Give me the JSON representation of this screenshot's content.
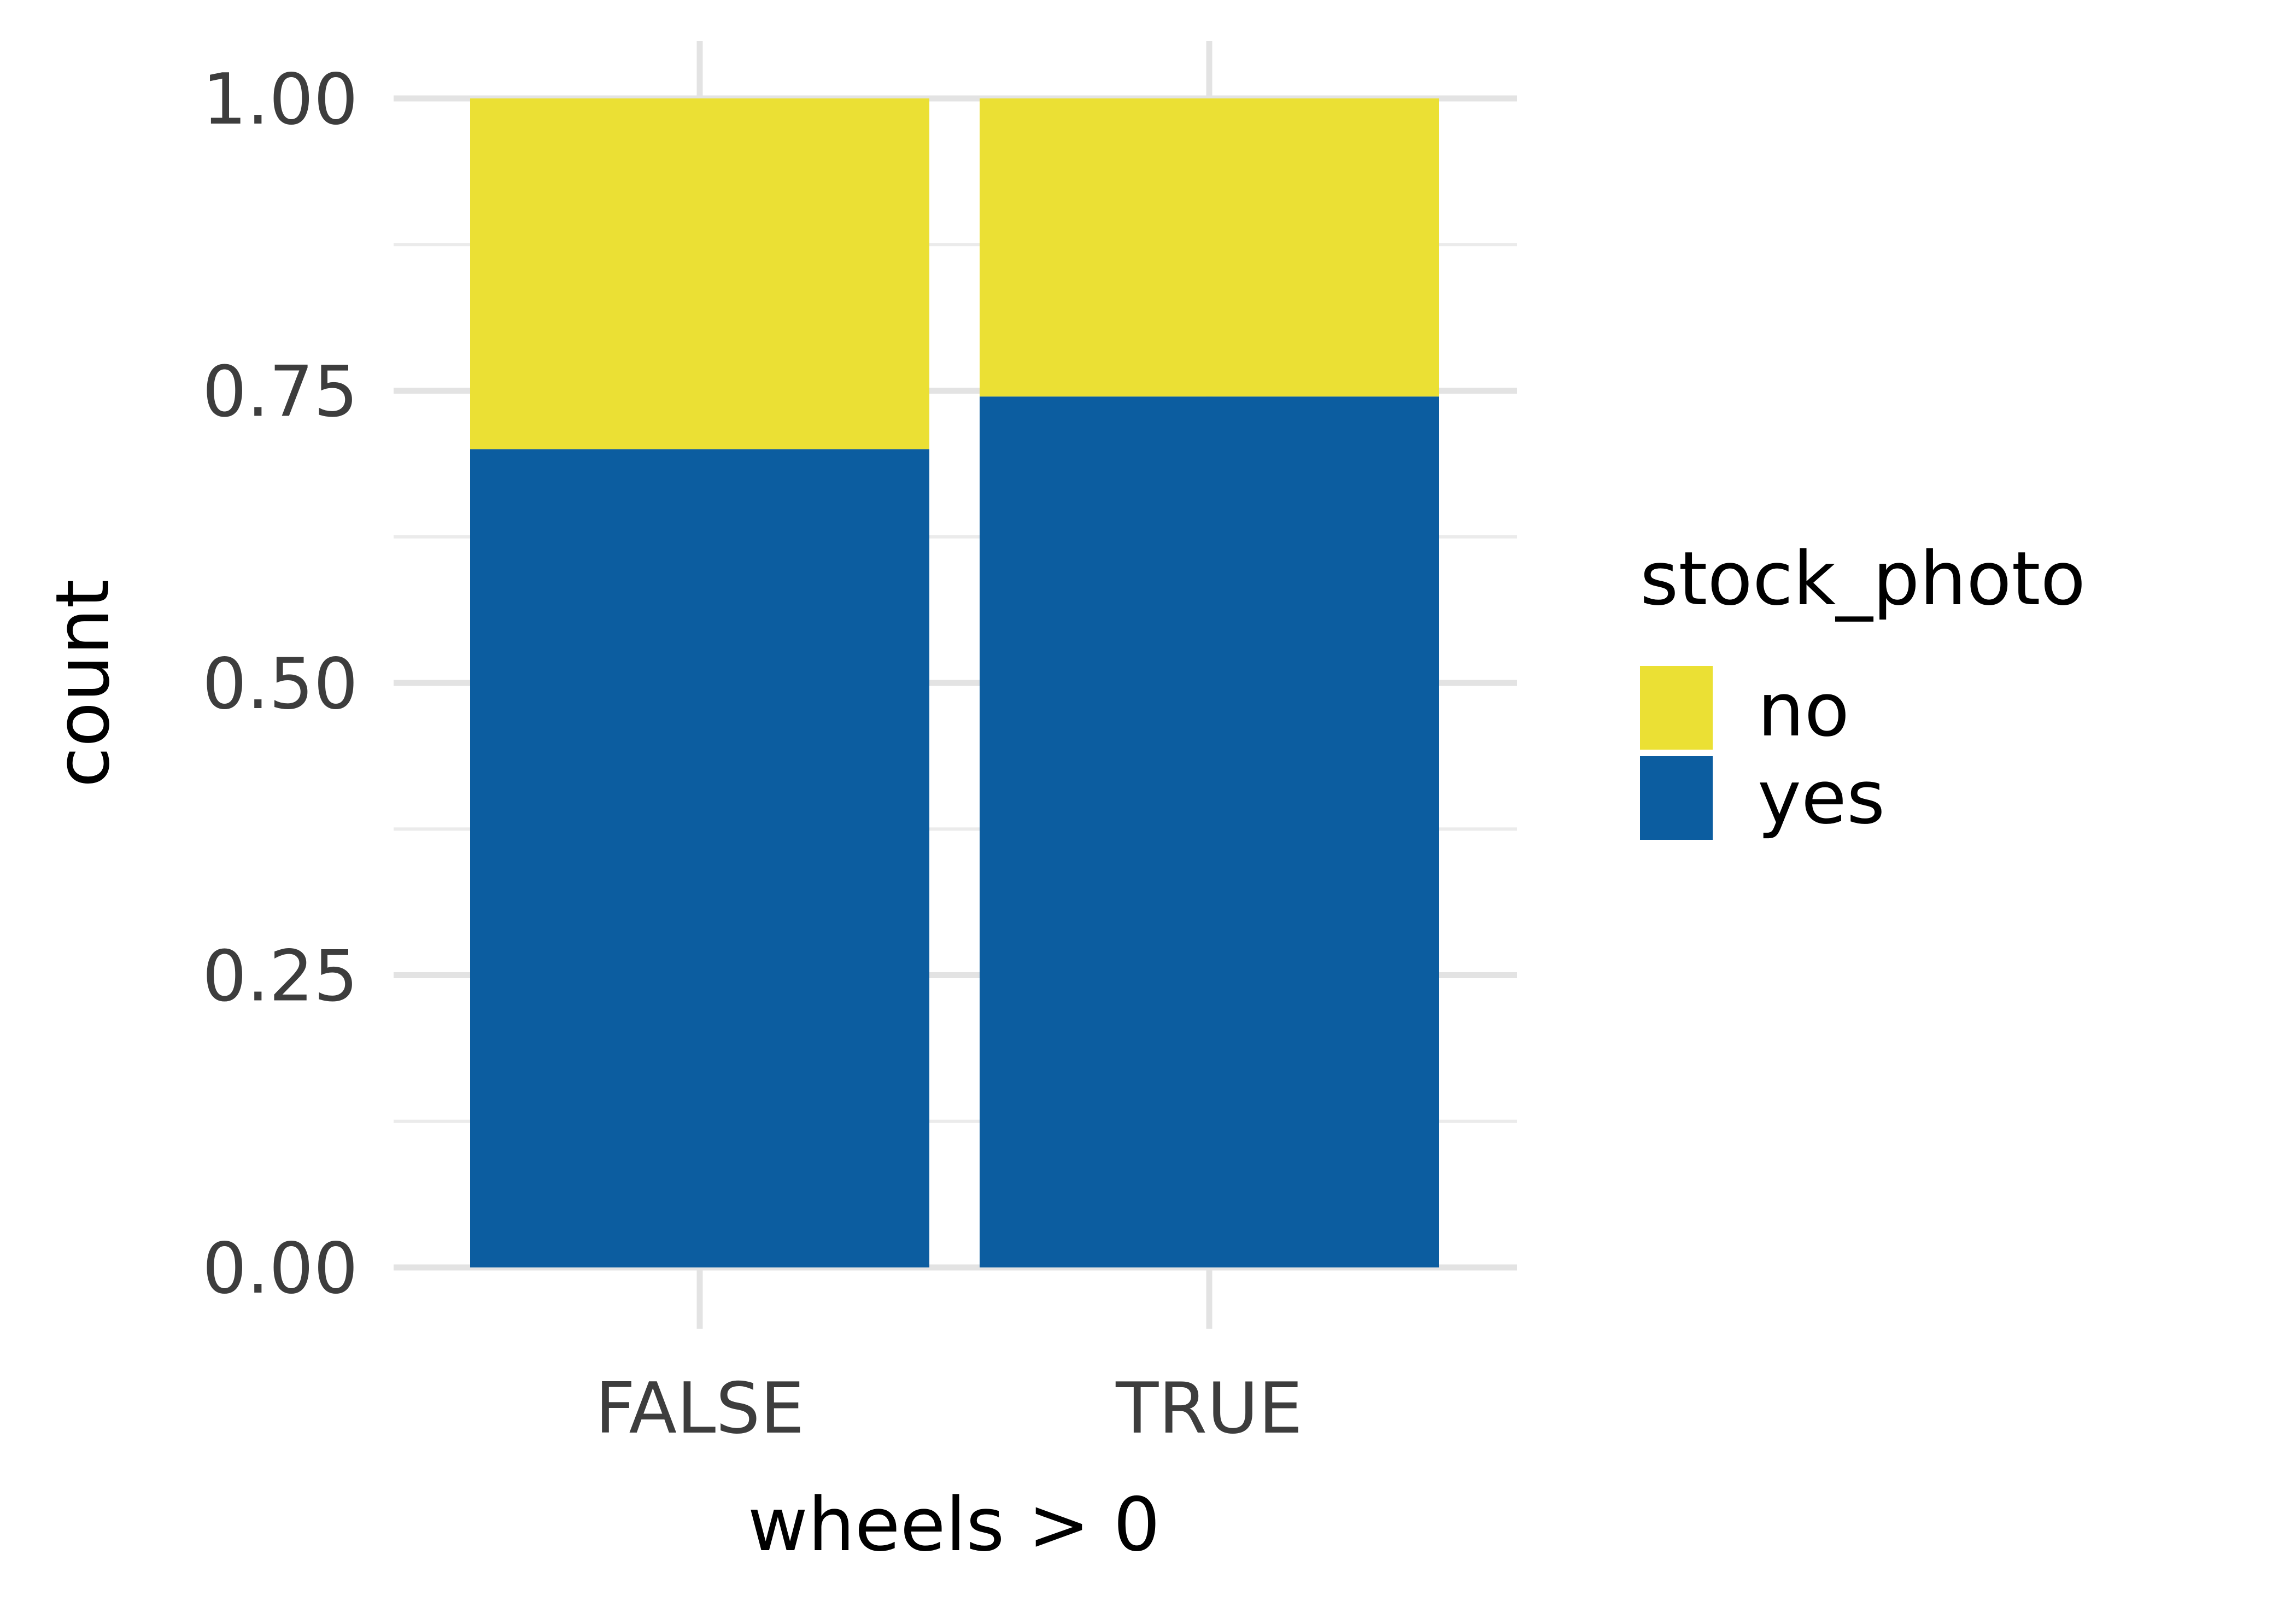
{
  "chart_data": {
    "type": "bar",
    "stacked": true,
    "categories": [
      "FALSE",
      "TRUE"
    ],
    "series": [
      {
        "name": "yes",
        "values": [
          0.7,
          0.745
        ],
        "color": "#0C5DA0"
      },
      {
        "name": "no",
        "values": [
          0.3,
          0.255
        ],
        "color": "#EBE034"
      }
    ],
    "xlabel": "wheels > 0",
    "ylabel": "count",
    "ylim": [
      0,
      1
    ],
    "y_ticks": [
      0.0,
      0.25,
      0.5,
      0.75,
      1.0
    ],
    "y_tick_labels": [
      "0.00",
      "0.25",
      "0.50",
      "0.75",
      "1.00"
    ],
    "grid": true,
    "legend": {
      "title": "stock_photo",
      "placement": "right",
      "items": [
        {
          "label": "no",
          "color": "#EBE034"
        },
        {
          "label": "yes",
          "color": "#0C5DA0"
        }
      ]
    }
  }
}
